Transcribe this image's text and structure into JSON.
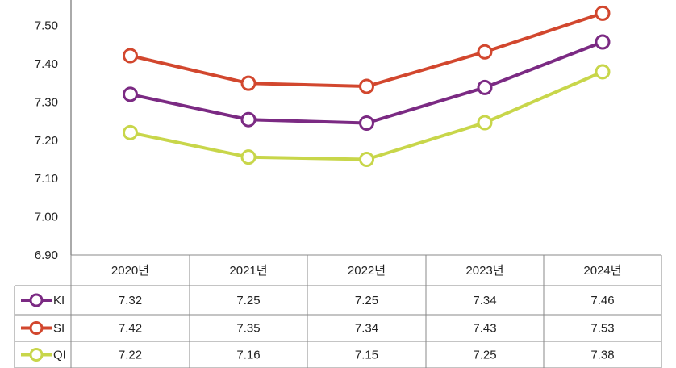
{
  "chart_data": {
    "type": "line",
    "categories": [
      "2020년",
      "2021년",
      "2022년",
      "2023년",
      "2024년"
    ],
    "ylim": [
      6.9,
      7.55
    ],
    "yticks": [
      "6.90",
      "7.00",
      "7.10",
      "7.20",
      "7.30",
      "7.40",
      "7.50"
    ],
    "grid": false,
    "legend": "data-table-below",
    "series": [
      {
        "name": "KI",
        "values": [
          7.32,
          7.254,
          7.245,
          7.338,
          7.457
        ],
        "labels": [
          "7.32",
          "7.25",
          "7.25",
          "7.34",
          "7.46"
        ],
        "color": "#7b2a83"
      },
      {
        "name": "SI",
        "values": [
          7.421,
          7.349,
          7.341,
          7.431,
          7.532
        ],
        "labels": [
          "7.42",
          "7.35",
          "7.34",
          "7.43",
          "7.53"
        ],
        "color": "#d2472e"
      },
      {
        "name": "QI",
        "values": [
          7.22,
          7.156,
          7.15,
          7.246,
          7.379
        ],
        "labels": [
          "7.22",
          "7.16",
          "7.15",
          "7.25",
          "7.38"
        ],
        "color": "#c8d64a"
      }
    ]
  }
}
